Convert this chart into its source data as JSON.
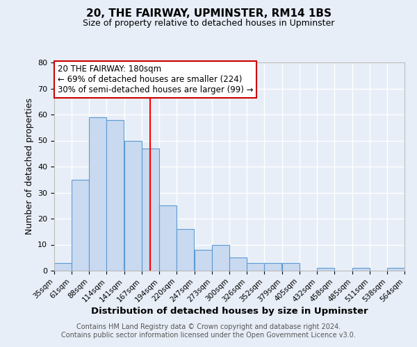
{
  "title": "20, THE FAIRWAY, UPMINSTER, RM14 1BS",
  "subtitle": "Size of property relative to detached houses in Upminster",
  "xlabel": "Distribution of detached houses by size in Upminster",
  "ylabel": "Number of detached properties",
  "bar_left_edges": [
    35,
    61,
    88,
    114,
    141,
    167,
    194,
    220,
    247,
    273,
    300,
    326,
    352,
    379,
    405,
    432,
    458,
    485,
    511,
    538
  ],
  "bar_heights": [
    3,
    35,
    59,
    58,
    50,
    47,
    25,
    16,
    8,
    10,
    5,
    3,
    3,
    3,
    0,
    1,
    0,
    1,
    0,
    1
  ],
  "bin_width": 26,
  "tick_labels": [
    "35sqm",
    "61sqm",
    "88sqm",
    "114sqm",
    "141sqm",
    "167sqm",
    "194sqm",
    "220sqm",
    "247sqm",
    "273sqm",
    "300sqm",
    "326sqm",
    "352sqm",
    "379sqm",
    "405sqm",
    "432sqm",
    "458sqm",
    "485sqm",
    "511sqm",
    "538sqm",
    "564sqm"
  ],
  "bar_color": "#c9d9ef",
  "bar_edge_color": "#5b9bd5",
  "property_line_x": 180,
  "ylim": [
    0,
    80
  ],
  "yticks": [
    0,
    10,
    20,
    30,
    40,
    50,
    60,
    70,
    80
  ],
  "annotation_line1": "20 THE FAIRWAY: 180sqm",
  "annotation_line2": "← 69% of detached houses are smaller (224)",
  "annotation_line3": "30% of semi-detached houses are larger (99) →",
  "annotation_box_color": "#ffffff",
  "annotation_box_edge_color": "#cc0000",
  "footer_line1": "Contains HM Land Registry data © Crown copyright and database right 2024.",
  "footer_line2": "Contains public sector information licensed under the Open Government Licence v3.0.",
  "background_color": "#e8eef7",
  "grid_color": "#ffffff",
  "title_fontsize": 11,
  "subtitle_fontsize": 9,
  "ylabel_fontsize": 9,
  "xlabel_fontsize": 9.5,
  "tick_fontsize": 7.5,
  "footer_fontsize": 7,
  "annotation_fontsize": 8.5
}
